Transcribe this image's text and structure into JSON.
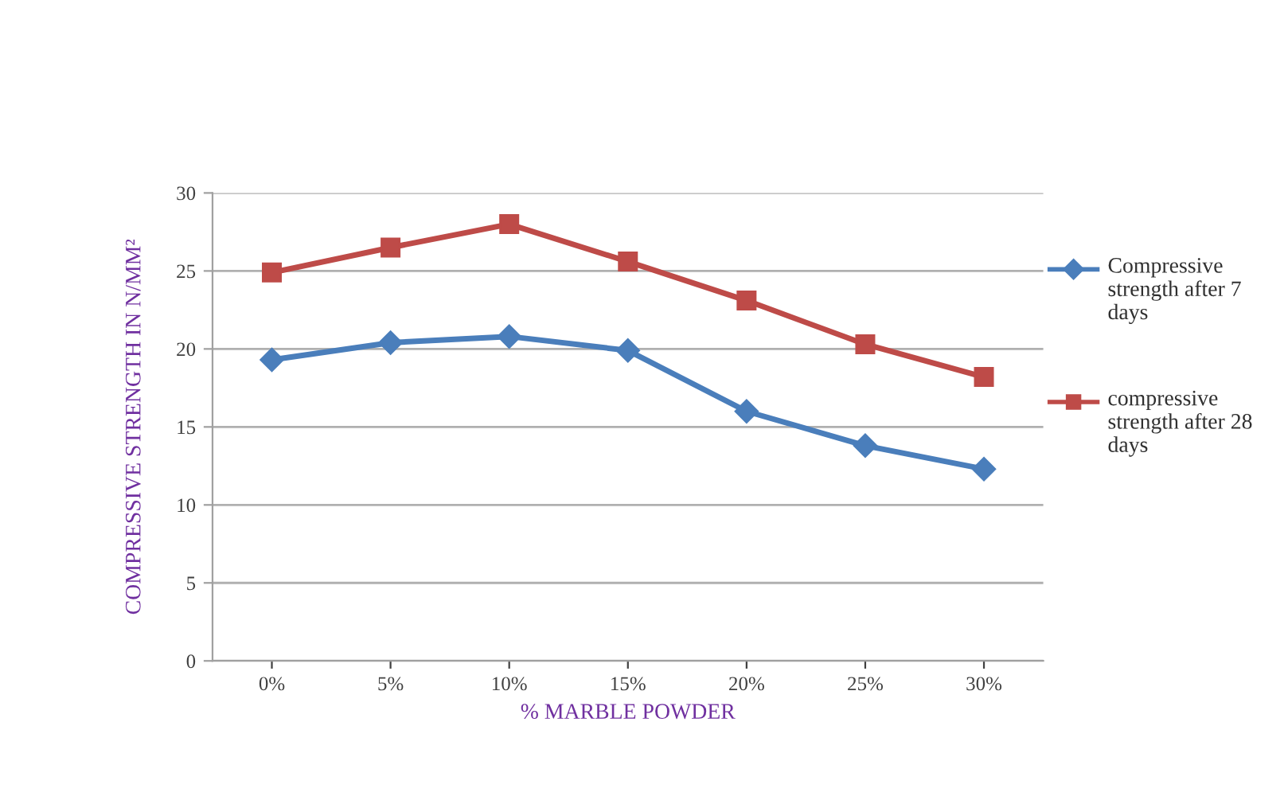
{
  "chart_data": {
    "type": "line",
    "xlabel": "% MARBLE POWDER",
    "ylabel": "COMPRESSIVE STRENGTH IN N/MM²",
    "categories": [
      "0%",
      "5%",
      "10%",
      "15%",
      "20%",
      "25%",
      "30%"
    ],
    "series": [
      {
        "name": "Compressive strength after 7 days",
        "color": "#4a7ebb",
        "marker": "diamond",
        "values": [
          19.3,
          20.4,
          20.8,
          19.9,
          16.0,
          13.8,
          12.3
        ]
      },
      {
        "name": "compressive strength after 28 days",
        "color": "#be4b48",
        "marker": "square",
        "values": [
          24.9,
          26.5,
          28.0,
          25.6,
          23.1,
          20.3,
          18.2
        ]
      }
    ],
    "ylim": [
      0,
      30
    ],
    "yticks": [
      0,
      5,
      10,
      15,
      20,
      25,
      30
    ],
    "grid": "y",
    "legend": "right"
  }
}
